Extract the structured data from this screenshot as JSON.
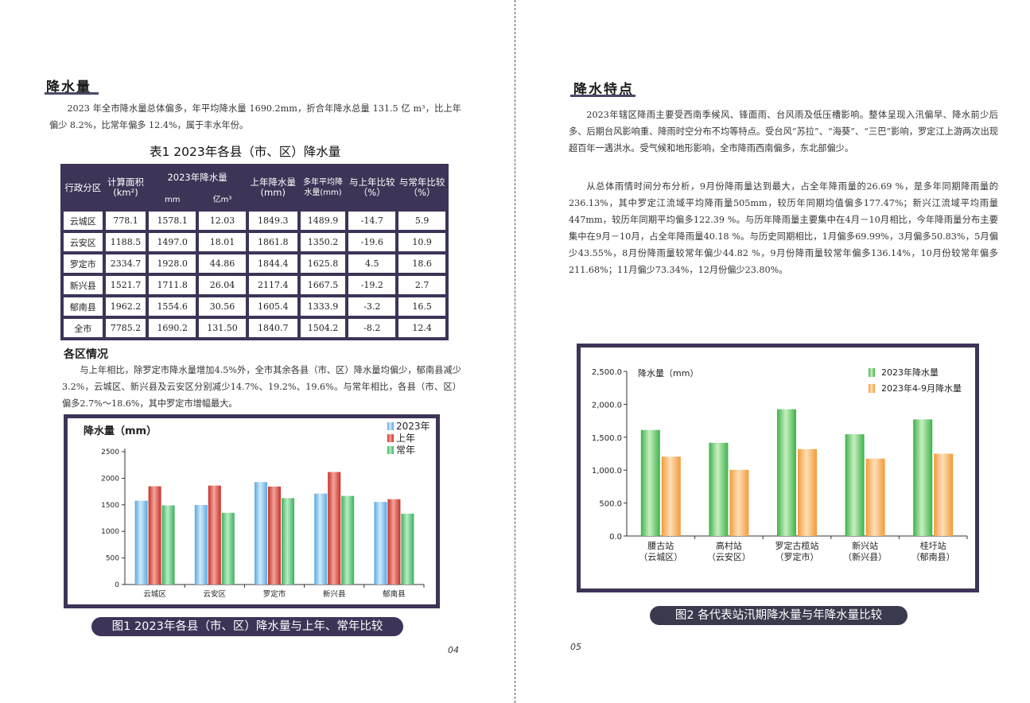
{
  "left": {
    "heading": "降水量",
    "intro": "2023 年全市降水量总体偏多，年平均降水量 1690.2mm，折合年降水总量 131.5 亿 m³，比上年偏少 8.2%，比常年偏多 12.4%，属于丰水年份。",
    "table_title": "表1 2023年各县（市、区）降水量",
    "table": {
      "headers": {
        "district": "行政分区",
        "area": "计算面积(km²)",
        "rain2023": "2023年降水量",
        "mm": "mm",
        "volume": "亿m³",
        "last_year": "上年降水量(mm)",
        "avg": "多年平均降水量(mm)",
        "vs_last": "与上年比较（%）",
        "vs_avg": "与常年比较（%）"
      },
      "rows": [
        {
          "name": "云城区",
          "area": "778.1",
          "mm": "1578.1",
          "vol": "12.03",
          "last": "1849.3",
          "avg": "1489.9",
          "vs_last": "-14.7",
          "vs_avg": "5.9"
        },
        {
          "name": "云安区",
          "area": "1188.5",
          "mm": "1497.0",
          "vol": "18.01",
          "last": "1861.8",
          "avg": "1350.2",
          "vs_last": "-19.6",
          "vs_avg": "10.9"
        },
        {
          "name": "罗定市",
          "area": "2334.7",
          "mm": "1928.0",
          "vol": "44.86",
          "last": "1844.4",
          "avg": "1625.8",
          "vs_last": "4.5",
          "vs_avg": "18.6"
        },
        {
          "name": "新兴县",
          "area": "1521.7",
          "mm": "1711.8",
          "vol": "26.04",
          "last": "2117.4",
          "avg": "1667.5",
          "vs_last": "-19.2",
          "vs_avg": "2.7"
        },
        {
          "name": "郁南县",
          "area": "1962.2",
          "mm": "1554.6",
          "vol": "30.56",
          "last": "1605.4",
          "avg": "1333.9",
          "vs_last": "-3.2",
          "vs_avg": "16.5"
        },
        {
          "name": "全市",
          "area": "7785.2",
          "mm": "1690.2",
          "vol": "131.50",
          "last": "1840.7",
          "avg": "1504.2",
          "vs_last": "-8.2",
          "vs_avg": "12.4"
        }
      ]
    },
    "subheading": "各区情况",
    "district_text": "与上年相比，除罗定市降水量增加4.5%外，全市其余各县（市、区）降水量均偏少，郁南县减少3.2%，云城区、新兴县及云安区分别减少14.7%、19.2%、19.6%。与常年相比，各县（市、区）偏多2.7%～18.6%，其中罗定市增幅最大。",
    "figure_caption": "图1  2023年各县（市、区）降水量与上年、常年比较",
    "page_number": "04"
  },
  "right": {
    "heading": "降水特点",
    "para1": "2023年辖区降雨主要受西南季候风、锋面雨、台风雨及低压槽影响。整体呈现入汛偏早、降水前少后多、后期台风影响重、降雨时空分布不均等特点。受台风“苏拉”、“海葵”、“三巴”影响，罗定江上游两次出现超百年一遇洪水。受气候和地形影响，全市降雨西南偏多，东北部偏少。",
    "para2": "从总体雨情时间分布分析，9月份降雨量达到最大，占全年降雨量的26.69 %，是多年同期降雨量的236.13%，其中罗定江流域平均降雨量505mm，较历年同期均值偏多177.47%；新兴江流域平均雨量447mm，较历年同期平均偏多122.39 %。与历年降雨量主要集中在4月－10月相比，今年降雨量分布主要集中在9月－10月，占全年降雨量40.18 %。与历史同期相比，1月偏多69.99%，3月偏多50.83%，5月偏少43.55%，8月份降雨量较常年偏少44.82 %，9月份降雨量较常年偏多136.14%，10月份较常年偏多211.68%；11月偏少73.34%，12月份偏少23.80%。",
    "figure_caption": "图2  各代表站汛期降水量与年降水量比较",
    "page_number": "05"
  },
  "chart_data": [
    {
      "type": "bar",
      "ylabel": "降水量（mm）",
      "categories": [
        "云城区",
        "云安区",
        "罗定市",
        "新兴县",
        "郁南县"
      ],
      "series": [
        {
          "name": "2023年",
          "values": [
            1578.1,
            1497.0,
            1928.0,
            1711.8,
            1554.6
          ]
        },
        {
          "name": "上年",
          "values": [
            1849.3,
            1861.8,
            1844.4,
            2117.4,
            1605.4
          ]
        },
        {
          "name": "常年",
          "values": [
            1489.9,
            1350.2,
            1625.8,
            1667.5,
            1333.9
          ]
        }
      ],
      "yticks": [
        "0",
        "500",
        "1000",
        "1500",
        "2000",
        "2500"
      ],
      "ylim": [
        0,
        2500
      ],
      "colors": [
        "#5aa8e0",
        "#c8302a",
        "#3db060"
      ],
      "legend": "top-right"
    },
    {
      "type": "bar",
      "ylabel": "降水量（mm）",
      "categories": [
        "腰古站\n（云城区）",
        "高村站\n（云安区）",
        "罗定古榄站\n（罗定市）",
        "新兴站\n（新兴县）",
        "桂圩站\n（郁南县）"
      ],
      "series": [
        {
          "name": "2023年降水量",
          "values": [
            1610,
            1415,
            1925,
            1545,
            1770
          ]
        },
        {
          "name": "2023年4-9月降水量",
          "values": [
            1205,
            1005,
            1320,
            1175,
            1250
          ]
        }
      ],
      "yticks": [
        "0.0",
        "500.0",
        "1,000.0",
        "1,500.0",
        "2,000.0",
        "2,500.0"
      ],
      "ylim": [
        0,
        2500
      ],
      "colors": [
        "#3bb34a",
        "#f39a3a"
      ],
      "legend": "top-right"
    }
  ]
}
